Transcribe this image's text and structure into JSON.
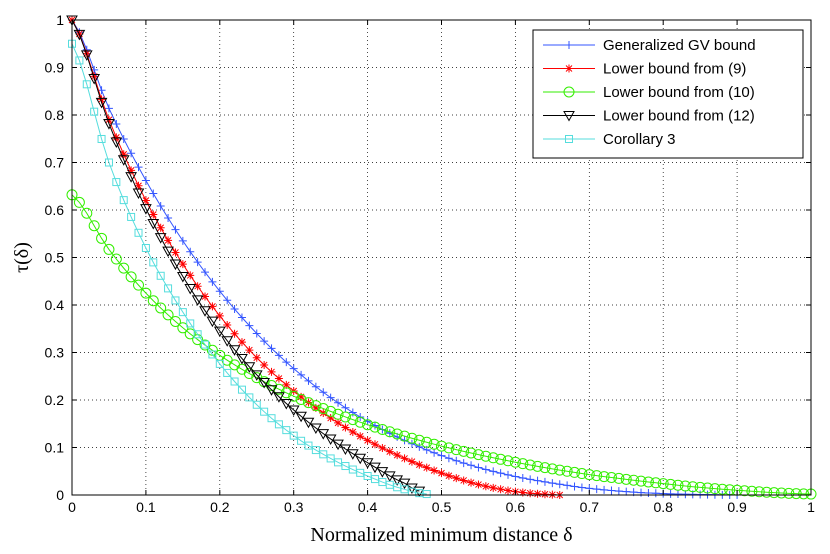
{
  "chart_data": {
    "type": "line",
    "title": "",
    "xlabel": "Normalized minimum distance δ",
    "ylabel": "τ(δ)",
    "xlim": [
      0,
      1
    ],
    "ylim": [
      0,
      1
    ],
    "grid": true,
    "legend_position": "top-right",
    "xticks": [
      "0",
      "0.1",
      "0.2",
      "0.3",
      "0.4",
      "0.5",
      "0.6",
      "0.7",
      "0.8",
      "0.9",
      "1"
    ],
    "yticks": [
      "0",
      "0.1",
      "0.2",
      "0.3",
      "0.4",
      "0.5",
      "0.6",
      "0.7",
      "0.8",
      "0.9",
      "1"
    ],
    "series": [
      {
        "name": "Generalized GV bound",
        "color": "#3355ff",
        "marker": "plus",
        "x": [
          0,
          0.05,
          0.1,
          0.15,
          0.2,
          0.25,
          0.3,
          0.35,
          0.4,
          0.45,
          0.5,
          0.55,
          0.6,
          0.65,
          0.7,
          0.75,
          0.8,
          0.85,
          0.9
        ],
        "y": [
          1.0,
          0.814,
          0.662,
          0.535,
          0.429,
          0.34,
          0.266,
          0.205,
          0.155,
          0.115,
          0.083,
          0.058,
          0.039,
          0.025,
          0.014,
          0.007,
          0.003,
          0.001,
          0.0
        ]
      },
      {
        "name": "Lower bound from (9)",
        "color": "#ff0000",
        "marker": "star",
        "x": [
          0,
          0.05,
          0.1,
          0.15,
          0.2,
          0.25,
          0.3,
          0.35,
          0.4,
          0.45,
          0.5,
          0.55,
          0.6,
          0.66
        ],
        "y": [
          1.0,
          0.79,
          0.62,
          0.486,
          0.377,
          0.289,
          0.219,
          0.162,
          0.115,
          0.077,
          0.046,
          0.022,
          0.007,
          0.0
        ]
      },
      {
        "name": "Lower bound from (10)",
        "color": "#33ee00",
        "marker": "circle",
        "x": [
          0,
          0.05,
          0.1,
          0.15,
          0.2,
          0.25,
          0.3,
          0.35,
          0.4,
          0.45,
          0.5,
          0.55,
          0.6,
          0.65,
          0.7,
          0.75,
          0.8,
          0.85,
          0.9,
          0.95,
          1.0
        ],
        "y": [
          0.632,
          0.517,
          0.425,
          0.352,
          0.294,
          0.247,
          0.208,
          0.176,
          0.148,
          0.124,
          0.103,
          0.085,
          0.069,
          0.055,
          0.043,
          0.033,
          0.024,
          0.016,
          0.01,
          0.005,
          0.002
        ]
      },
      {
        "name": "Lower bound from (12)",
        "color": "#000000",
        "marker": "triangle-down",
        "x": [
          0,
          0.05,
          0.1,
          0.15,
          0.2,
          0.25,
          0.3,
          0.35,
          0.4,
          0.45,
          0.475
        ],
        "y": [
          1.0,
          0.782,
          0.603,
          0.46,
          0.345,
          0.253,
          0.179,
          0.118,
          0.068,
          0.025,
          0.006
        ]
      },
      {
        "name": "Corollary 3",
        "color": "#55dddd",
        "marker": "square",
        "x": [
          0,
          0.05,
          0.1,
          0.15,
          0.2,
          0.25,
          0.3,
          0.35,
          0.4,
          0.45,
          0.48
        ],
        "y": [
          0.95,
          0.7,
          0.52,
          0.385,
          0.276,
          0.19,
          0.125,
          0.077,
          0.04,
          0.012,
          0.002
        ]
      }
    ]
  }
}
